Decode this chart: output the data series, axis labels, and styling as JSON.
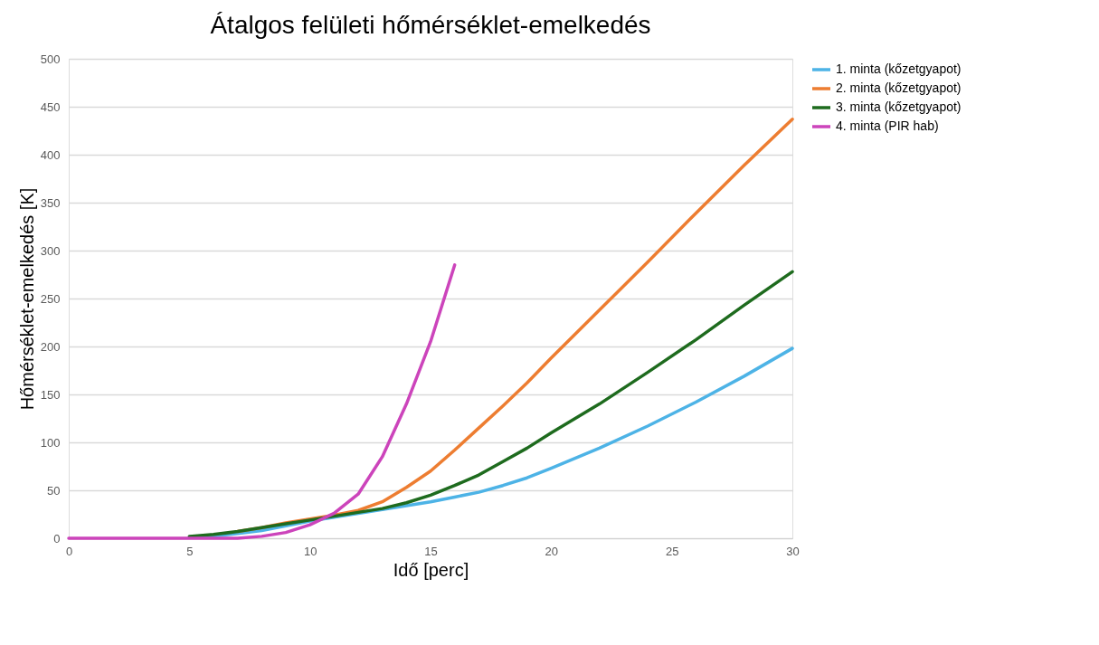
{
  "chart_data": {
    "type": "line",
    "title": "Átalgos felületi hőmérséklet-emelkedés",
    "xlabel": "Idő [perc]",
    "ylabel": "Hőmérséklet-emelkedés [K]",
    "xlim": [
      0,
      30
    ],
    "xticks": [
      0,
      5,
      10,
      15,
      20,
      25,
      30
    ],
    "ylim": [
      0,
      500
    ],
    "yticks": [
      0,
      50,
      100,
      150,
      200,
      250,
      300,
      350,
      400,
      450,
      500
    ],
    "grid": "y",
    "legend": "right",
    "marker": "none",
    "line_style": "solid",
    "series": [
      {
        "name": "1. minta (kőzetgyapot)",
        "color": "#4db3e6",
        "x": [
          5,
          6,
          7,
          8,
          9,
          10,
          11,
          12,
          13,
          14,
          15,
          16,
          17,
          18,
          19,
          20,
          22,
          24,
          26,
          28,
          30
        ],
        "values": [
          1,
          2,
          5,
          8,
          13,
          18,
          22,
          26,
          30,
          34,
          38,
          43,
          48,
          55,
          63,
          73,
          94,
          117,
          142,
          169,
          198
        ]
      },
      {
        "name": "2. minta (kőzetgyapot)",
        "color": "#ed7d31",
        "x": [
          7,
          8,
          9,
          10,
          11,
          12,
          13,
          14,
          15,
          16,
          17,
          18,
          19,
          20,
          22,
          24,
          26,
          28,
          30
        ],
        "values": [
          7,
          11,
          16,
          20,
          24,
          29,
          38,
          53,
          70,
          92,
          115,
          138,
          162,
          188,
          238,
          288,
          339,
          389,
          437
        ]
      },
      {
        "name": "3. minta (kőzetgyapot)",
        "color": "#1e6b1e",
        "x": [
          5,
          6,
          7,
          8,
          9,
          10,
          11,
          12,
          13,
          14,
          15,
          16,
          17,
          18,
          19,
          20,
          22,
          24,
          26,
          28,
          30
        ],
        "values": [
          2,
          4,
          7,
          11,
          15,
          19,
          23,
          27,
          31,
          37,
          45,
          55,
          66,
          80,
          94,
          110,
          140,
          173,
          207,
          243,
          278
        ]
      },
      {
        "name": "4. minta (PIR hab)",
        "color": "#cc44bb",
        "x": [
          0,
          1,
          2,
          3,
          4,
          5,
          6,
          7,
          8,
          9,
          10,
          11,
          12,
          13,
          14,
          15,
          16
        ],
        "values": [
          0,
          0,
          0,
          0,
          0,
          0,
          0,
          0,
          2,
          6,
          14,
          26,
          46,
          85,
          140,
          205,
          285
        ]
      }
    ]
  }
}
